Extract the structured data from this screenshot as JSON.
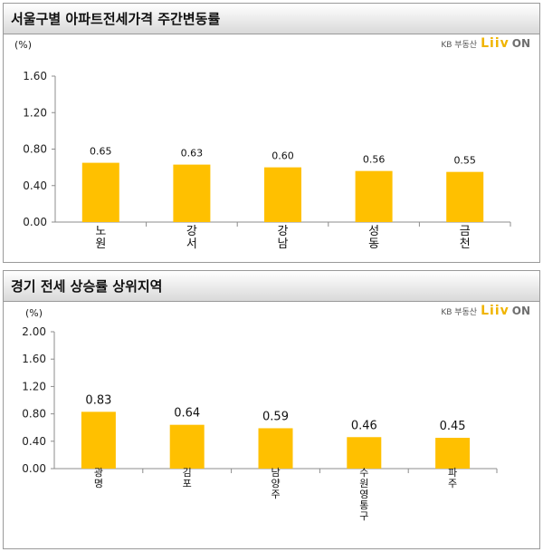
{
  "logo": {
    "kb": "KB 부동산",
    "liiv": "Liiv",
    "on": "ON"
  },
  "chart_data": [
    {
      "type": "bar",
      "title": "서울구별 아파트전세가격 주간변동률",
      "unit": "(%)",
      "categories": [
        "노원",
        "강서",
        "강남",
        "성동",
        "금천"
      ],
      "values": [
        0.65,
        0.63,
        0.6,
        0.56,
        0.55
      ],
      "value_labels": [
        "0.65",
        "0.63",
        "0.60",
        "0.56",
        "0.55"
      ],
      "yticks": [
        "0.00",
        "0.40",
        "0.80",
        "1.20",
        "1.60"
      ],
      "ylim": [
        0,
        1.6
      ],
      "grid": false,
      "bar_color": "#FFC000"
    },
    {
      "type": "bar",
      "title": "경기 전세 상승률 상위지역",
      "unit": "(%)",
      "categories": [
        "광명",
        "김포",
        "남양주",
        "수원 영통구",
        "파주"
      ],
      "values": [
        0.83,
        0.64,
        0.59,
        0.46,
        0.45
      ],
      "value_labels": [
        "0.83",
        "0.64",
        "0.59",
        "0.46",
        "0.45"
      ],
      "yticks": [
        "0.00",
        "0.40",
        "0.80",
        "1.20",
        "1.60",
        "2.00"
      ],
      "ylim": [
        0,
        2.0
      ],
      "grid": false,
      "bar_color": "#FFC000"
    }
  ]
}
